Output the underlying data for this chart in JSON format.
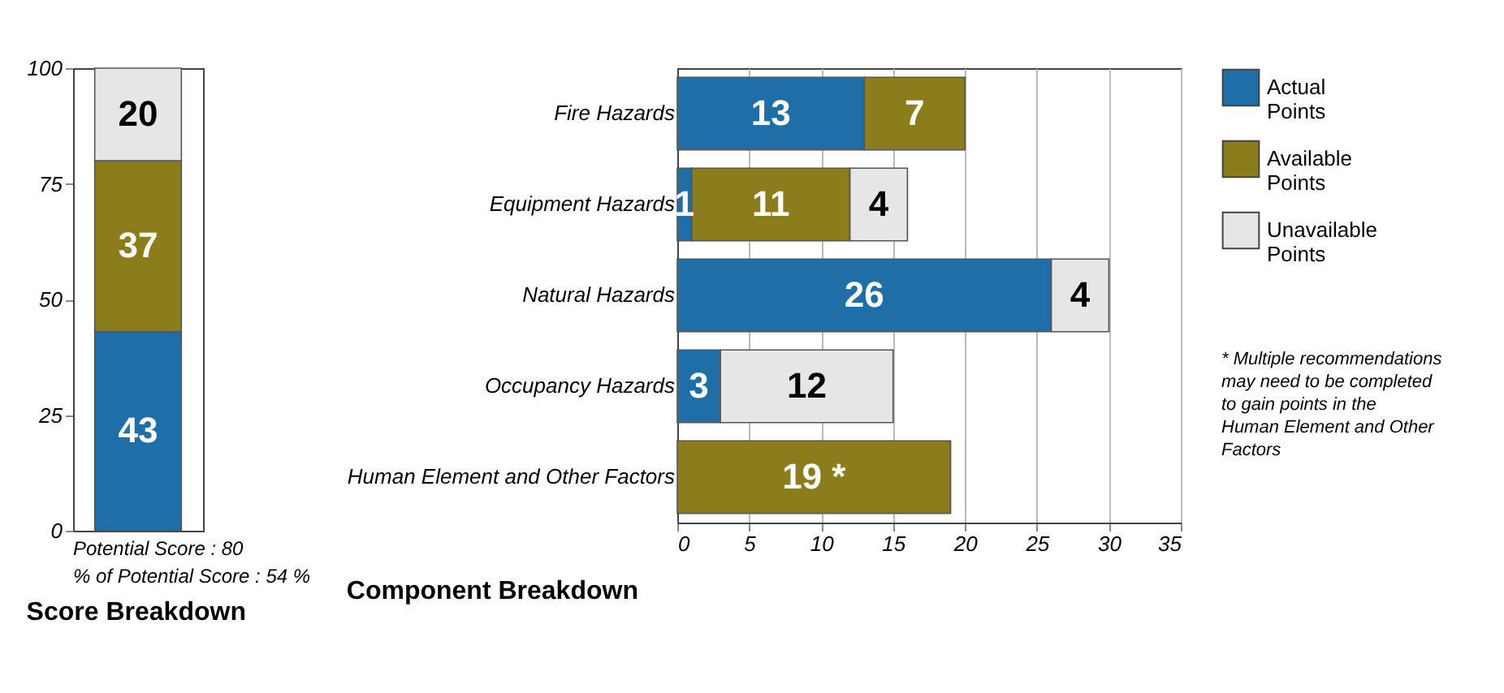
{
  "chart_data": [
    {
      "type": "bar",
      "stacked": true,
      "title": "Score Breakdown",
      "categories": [
        null
      ],
      "series": [
        {
          "color": "#1f6ea8",
          "values": [
            43
          ]
        },
        {
          "color": "#8b7c1c",
          "values": [
            37
          ]
        },
        {
          "color": "#e6e6e6",
          "values": [
            20
          ]
        }
      ],
      "ylim": [
        0,
        100
      ],
      "yticks": [
        0,
        25,
        50,
        75,
        100
      ],
      "data_labels": true,
      "grid": false,
      "legend": false,
      "annotations": [
        "Potential Score : 80",
        "% of Potential Score : 54 %"
      ]
    },
    {
      "type": "bar",
      "stacked": true,
      "orientation": "horizontal",
      "title": "Component Breakdown",
      "categories": [
        "Fire Hazards",
        "Equipment Hazards",
        "Natural Hazards",
        "Occupancy Hazards",
        "Human Element and Other Factors"
      ],
      "series": [
        {
          "name": "Actual Points",
          "color": "#1f6ea8",
          "values": [
            13,
            1,
            26,
            3,
            null
          ],
          "value_labels": [
            "13",
            "1",
            "26",
            "3",
            null
          ]
        },
        {
          "name": "Available Points",
          "color": "#8b7c1c",
          "values": [
            7,
            11,
            null,
            null,
            19
          ],
          "value_labels": [
            "7",
            "11",
            null,
            null,
            "19 *"
          ]
        },
        {
          "name": "Unavailable Points",
          "color": "#e6e6e6",
          "values": [
            null,
            4,
            4,
            12,
            null
          ],
          "value_labels": [
            null,
            "4",
            "4",
            "12",
            null
          ]
        }
      ],
      "xlim": [
        0,
        35
      ],
      "xticks": [
        0,
        5,
        10,
        15,
        20,
        25,
        30,
        35
      ],
      "grid": "x",
      "legend": "right",
      "annotations": [
        "* Multiple recommendations may need to be completed to gain points in the Human Element and Other Factors"
      ]
    }
  ]
}
